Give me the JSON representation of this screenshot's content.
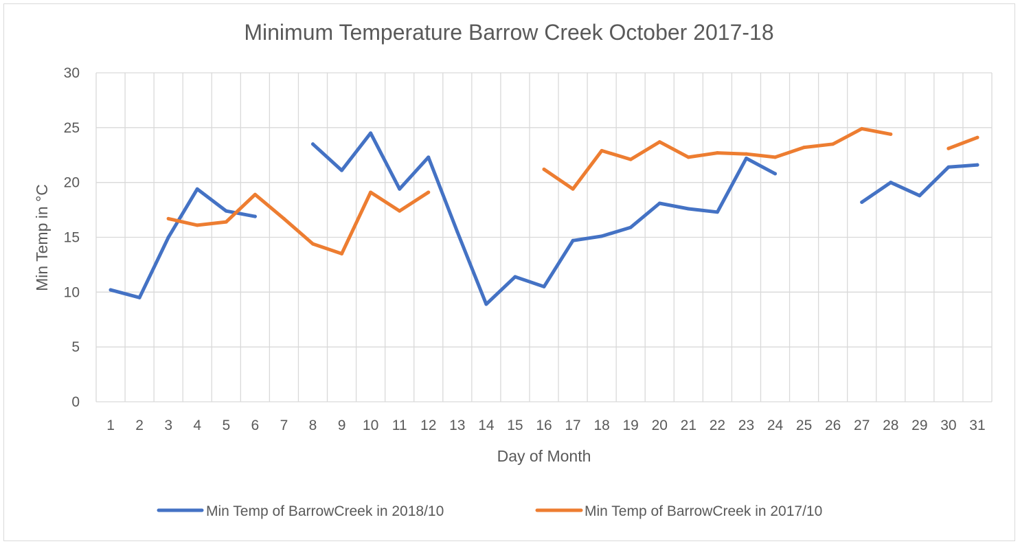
{
  "chart_data": {
    "type": "line",
    "title": "Minimum Temperature Barrow Creek October 2017-18",
    "xlabel": "Day of Month",
    "ylabel": "Min Temp in °C",
    "ylim": [
      0,
      30
    ],
    "yticks": [
      "0",
      "5",
      "10",
      "15",
      "20",
      "25",
      "30"
    ],
    "categories": [
      "1",
      "2",
      "3",
      "4",
      "5",
      "6",
      "7",
      "8",
      "9",
      "10",
      "11",
      "12",
      "13",
      "14",
      "15",
      "16",
      "17",
      "18",
      "19",
      "20",
      "21",
      "22",
      "23",
      "24",
      "25",
      "26",
      "27",
      "28",
      "29",
      "30",
      "31"
    ],
    "grid": true,
    "legend_position": "bottom",
    "series": [
      {
        "name": "Min Temp of BarrowCreek in 2018/10",
        "color": "#4472C4",
        "values": [
          10.2,
          9.5,
          15.0,
          19.4,
          17.4,
          16.9,
          null,
          23.5,
          21.1,
          24.5,
          19.4,
          22.3,
          15.5,
          8.9,
          11.4,
          10.5,
          14.7,
          15.1,
          15.9,
          18.1,
          17.6,
          17.3,
          22.2,
          20.8,
          null,
          null,
          18.2,
          20.0,
          18.8,
          21.4,
          21.6
        ]
      },
      {
        "name": "Min Temp of BarrowCreek in 2017/10",
        "color": "#ED7D31",
        "values": [
          null,
          null,
          16.7,
          16.1,
          16.4,
          18.9,
          16.7,
          14.4,
          13.5,
          19.1,
          17.4,
          19.1,
          null,
          null,
          null,
          21.2,
          19.4,
          22.9,
          22.1,
          23.7,
          22.3,
          22.7,
          22.6,
          22.3,
          23.2,
          23.5,
          24.9,
          24.4,
          null,
          23.1,
          24.1
        ]
      }
    ]
  }
}
